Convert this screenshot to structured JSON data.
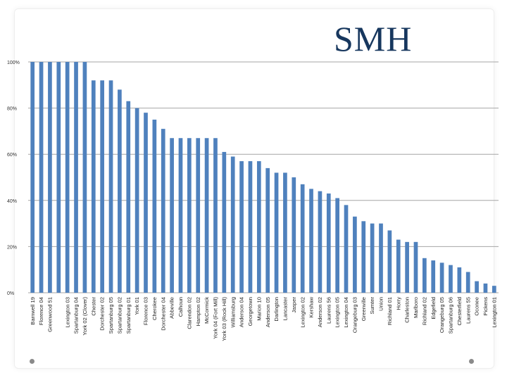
{
  "slide": {
    "title": "SMH"
  },
  "colors": {
    "bar": "#4f81bd",
    "grid": "#a6a6a6",
    "title": "#17375e"
  },
  "chart_data": {
    "type": "bar",
    "ylim": [
      0,
      100
    ],
    "yticks": [
      0,
      20,
      40,
      60,
      80,
      100
    ],
    "ytick_labels": [
      "0%",
      "20%",
      "40%",
      "60%",
      "80%",
      "100%"
    ],
    "grid": true,
    "legend": "none",
    "categories": [
      "Barnwell 19",
      "Florence 04",
      "Greenwood 51",
      "",
      "Lexington 03",
      "Spartanburg 04",
      "York 02 (Clover)",
      "Chester",
      "Dorchester 02",
      "Spartanburg 05",
      "Spartanburg 02",
      "Spartanburg 01",
      "York 01",
      "Florence 03",
      "Cherokee",
      "Dorchester 04",
      "Abbeville",
      "Calhoun",
      "Clarendon 02",
      "Hampton 02",
      "McCormick",
      "York 04 (Fort Mill)",
      "York 03 (Rock Hill)",
      "Williamsburg",
      "Anderson 04",
      "Georgetown",
      "Marion 10",
      "Anderson 05",
      "Darlington",
      "Lancaster",
      "Jasper",
      "Lexington 02",
      "Kershaw",
      "Anderson 02",
      "Laurens 56",
      "Lexington 05",
      "Lexington 04",
      "Orangeburg 03",
      "Greenville",
      "Sumter",
      "Union",
      "Richland 01",
      "Horry",
      "Charleston",
      "Marlboro",
      "Richland 02",
      "Edgefield",
      "Orangeburg 05",
      "Spartanburg 06",
      "Chesterfield",
      "Laurens 55",
      "Oconee",
      "Pickens",
      "Lexington 01"
    ],
    "values": [
      100,
      100,
      100,
      100,
      100,
      100,
      100,
      92,
      92,
      92,
      88,
      83,
      80,
      78,
      75,
      71,
      67,
      67,
      67,
      67,
      67,
      67,
      61,
      59,
      57,
      57,
      57,
      54,
      52,
      52,
      50,
      47,
      45,
      44,
      43,
      41,
      38,
      33,
      31,
      30,
      30,
      27,
      23,
      22,
      22,
      15,
      14,
      13,
      12,
      11,
      9,
      5,
      4,
      3
    ]
  }
}
